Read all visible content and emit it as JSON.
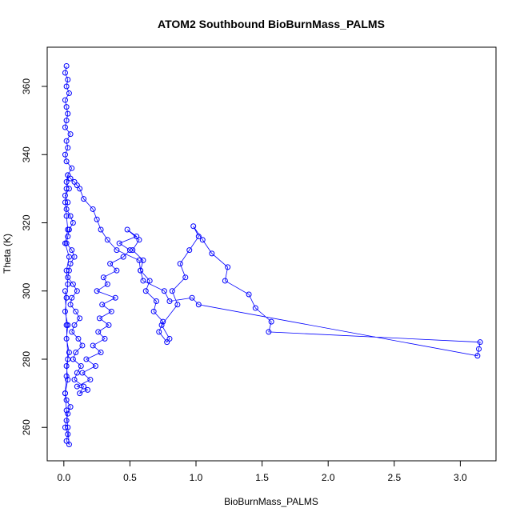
{
  "chart_data": {
    "type": "scatter",
    "title": "ATOM2 Southbound BioBurnMass_PALMS",
    "xlabel": "BioBurnMass_PALMS",
    "ylabel": "Theta (K)",
    "xlim": [
      -0.126,
      3.27
    ],
    "ylim": [
      250.2,
      371.5
    ],
    "x_ticks": [
      0.0,
      0.5,
      1.0,
      1.5,
      2.0,
      2.5,
      3.0
    ],
    "x_tick_labels": [
      "0.0",
      "0.5",
      "1.0",
      "1.5",
      "2.0",
      "2.5",
      "3.0"
    ],
    "y_ticks": [
      260,
      280,
      300,
      320,
      340,
      360
    ],
    "y_tick_labels": [
      "260",
      "280",
      "300",
      "320",
      "340",
      "360"
    ],
    "grid": false,
    "legend": "none",
    "series": [
      {
        "color": "#0000ff",
        "marker": "open-circle",
        "connected": true,
        "x": [
          0.02,
          0.01,
          0.03,
          0.02,
          0.04,
          0.01,
          0.02,
          0.03,
          0.02,
          0.01,
          0.05,
          0.02,
          0.03,
          0.01,
          0.02,
          0.06,
          0.03,
          0.02,
          0.04,
          0.01,
          0.03,
          0.02,
          0.05,
          0.07,
          0.04,
          0.03,
          0.02,
          0.06,
          0.08,
          0.05,
          0.04,
          0.03,
          0.07,
          0.1,
          0.06,
          0.05,
          0.09,
          0.12,
          0.08,
          0.06,
          0.11,
          0.14,
          0.09,
          0.07,
          0.13,
          0.1,
          0.08,
          0.15,
          0.12,
          0.18,
          0.1,
          0.2,
          0.14,
          0.24,
          0.17,
          0.28,
          0.22,
          0.31,
          0.26,
          0.34,
          0.27,
          0.36,
          0.29,
          0.39,
          0.25,
          0.33,
          0.3,
          0.4,
          0.35,
          0.45,
          0.5,
          0.42,
          0.55,
          0.48,
          0.57,
          0.52,
          0.6,
          0.58,
          0.65,
          0.62,
          0.7,
          0.68,
          0.75,
          0.72,
          0.78,
          0.8,
          0.74,
          0.86,
          0.82,
          0.92,
          0.88,
          0.95,
          1.02,
          0.98,
          1.05,
          1.12,
          1.24,
          1.22,
          1.4,
          1.45,
          1.57,
          1.55,
          3.15,
          3.14,
          3.13,
          1.02,
          0.97,
          0.8,
          0.76,
          0.6,
          0.58,
          0.57,
          0.4,
          0.33,
          0.28,
          0.25,
          0.22,
          0.15,
          0.12,
          0.1,
          0.08,
          0.05,
          0.03,
          0.02,
          0.01,
          0.02,
          0.03,
          0.01,
          0.04,
          0.02,
          0.03,
          0.02,
          0.01,
          0.03,
          0.02,
          0.04,
          0.02,
          0.03,
          0.01,
          0.02,
          0.05,
          0.03,
          0.02,
          0.01,
          0.03,
          0.02,
          0.04,
          0.03,
          0.02,
          0.01,
          0.02,
          0.03,
          0.02,
          0.01
        ],
        "y": [
          366,
          364,
          362,
          360,
          358,
          356,
          354,
          352,
          350,
          348,
          346,
          344,
          342,
          340,
          338,
          336,
          334,
          332,
          330,
          328,
          326,
          324,
          322,
          320,
          318,
          316,
          314,
          312,
          310,
          308,
          306,
          304,
          302,
          300,
          298,
          296,
          294,
          292,
          290,
          288,
          286,
          284,
          282,
          280,
          278,
          276,
          274,
          272,
          270,
          271,
          272,
          274,
          276,
          278,
          280,
          282,
          284,
          286,
          288,
          290,
          292,
          294,
          296,
          298,
          300,
          302,
          304,
          306,
          308,
          310,
          312,
          314,
          316,
          318,
          315,
          312,
          309,
          306,
          303,
          300,
          297,
          294,
          291,
          288,
          285,
          286,
          290,
          296,
          300,
          304,
          308,
          312,
          316,
          319,
          315,
          311,
          307,
          303,
          299,
          295,
          291,
          288,
          285,
          283,
          281,
          296,
          298,
          297,
          300,
          303,
          306,
          309,
          312,
          315,
          318,
          321,
          324,
          327,
          330,
          331,
          332,
          333,
          334,
          330,
          326,
          322,
          318,
          314,
          310,
          306,
          302,
          298,
          294,
          290,
          286,
          282,
          278,
          274,
          270,
          268,
          266,
          264,
          262,
          260,
          258,
          256,
          255,
          260,
          265,
          270,
          275,
          280,
          290,
          300
        ],
        "note": "approximate reading; dense cloud near x≈0 spanning θ 255–367 K with trailing excursions"
      }
    ]
  }
}
